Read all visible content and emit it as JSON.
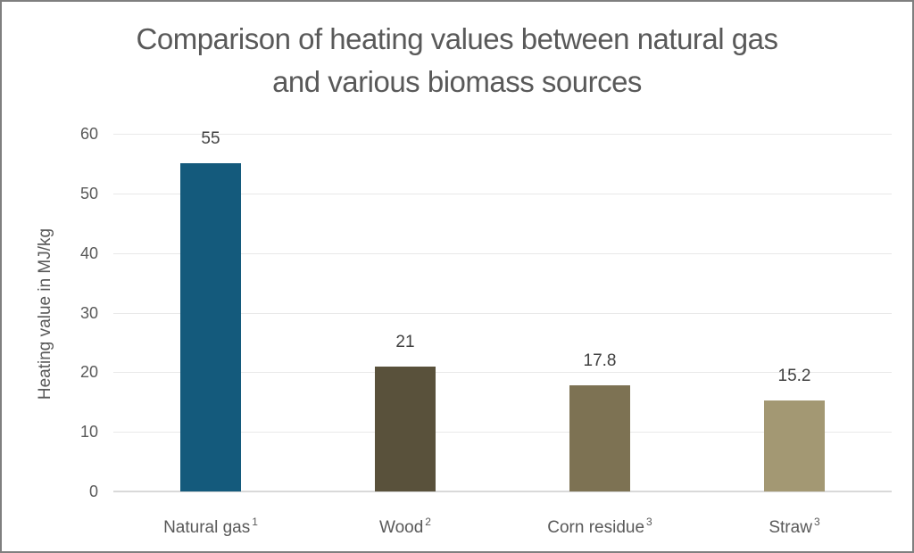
{
  "chart_data": {
    "type": "bar",
    "title": "Comparison of heating values between natural gas and various biomass sources",
    "title_lines": [
      "Comparison of heating values between natural gas",
      "and various biomass sources"
    ],
    "xlabel": "",
    "ylabel": "Heating value in MJ/kg",
    "categories": [
      "Natural gas",
      "Wood",
      "Corn residue",
      "Straw"
    ],
    "category_footnotes": [
      "1",
      "2",
      "3",
      "3"
    ],
    "values": [
      55,
      21,
      17.8,
      15.2
    ],
    "value_labels": [
      "55",
      "21",
      "17.8",
      "15.2"
    ],
    "colors": [
      "#145a7c",
      "#59513b",
      "#7d7253",
      "#a39873"
    ],
    "ylim": [
      0,
      60
    ],
    "yticks": [
      "0",
      "10",
      "20",
      "30",
      "40",
      "50",
      "60"
    ],
    "grid": true,
    "legend": null
  }
}
